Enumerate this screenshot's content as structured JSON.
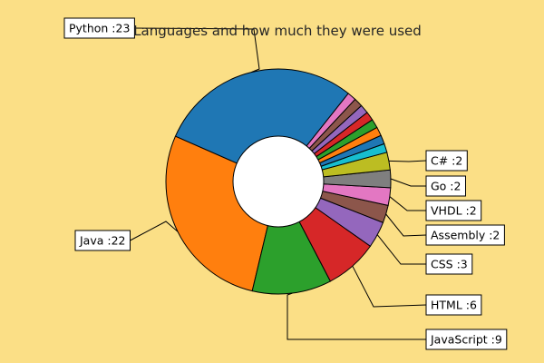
{
  "chart_data": {
    "type": "pie",
    "donut": true,
    "title": "Languages and how much they were used",
    "categories": [
      "Python",
      "Java",
      "JavaScript",
      "HTML",
      "CSS",
      "Assembly",
      "VHDL",
      "Go",
      "C#",
      "",
      "",
      "",
      "",
      "",
      "",
      "",
      ""
    ],
    "values": [
      23,
      22,
      9,
      6,
      3,
      2,
      2,
      2,
      2,
      1,
      1,
      1,
      1,
      1,
      1,
      1,
      1
    ],
    "labels": [
      "Python :23",
      "Java :22",
      "JavaScript :9",
      "HTML :6",
      "CSS :3",
      "Assembly :2",
      "VHDL :2",
      "Go :2",
      "C# :2",
      "",
      "",
      "",
      "",
      "",
      "",
      "",
      ""
    ],
    "colors": [
      "#1f77b4",
      "#ff7f0e",
      "#2ca02c",
      "#d62728",
      "#9467bd",
      "#8c564b",
      "#e377c2",
      "#7f7f7f",
      "#bcbd22",
      "#17becf",
      "#1f77b4",
      "#ff7f0e",
      "#2ca02c",
      "#d62728",
      "#9467bd",
      "#8c564b",
      "#e377c2"
    ],
    "background": "#fbdf86",
    "legend": "none"
  }
}
